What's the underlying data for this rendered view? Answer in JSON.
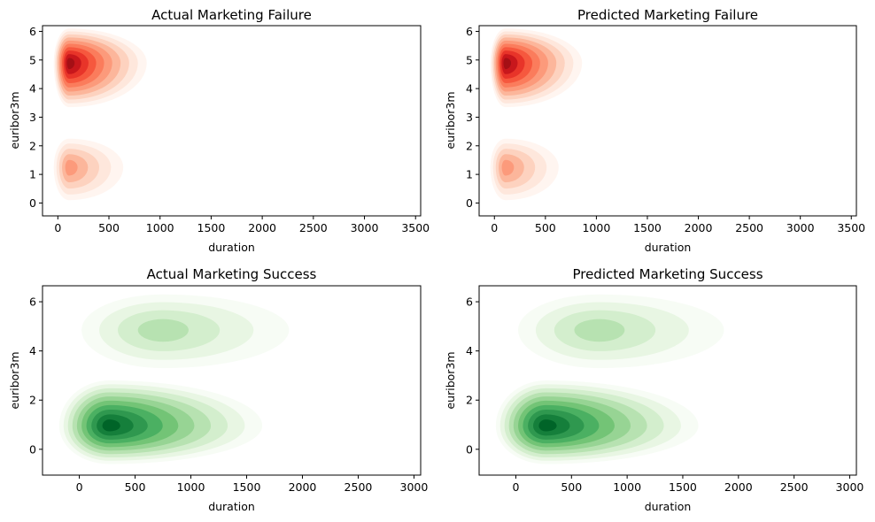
{
  "chart_data": [
    {
      "type": "kde-contour",
      "title": "Actual Marketing Failure",
      "xlabel": "duration",
      "ylabel": "euribor3m",
      "xlim": [
        -150,
        3550
      ],
      "ylim": [
        -0.45,
        6.2
      ],
      "xticks": [
        0,
        500,
        1000,
        1500,
        2000,
        2500,
        3000,
        3500
      ],
      "yticks": [
        0,
        1,
        2,
        3,
        4,
        5,
        6
      ],
      "colormap": "Reds",
      "colors": [
        "#fff5f0",
        "#fee7dc",
        "#fdd2bf",
        "#fcb69b",
        "#fc9a7b",
        "#fb7c5c",
        "#f6583e",
        "#e83429",
        "#c8171c",
        "#a50f15"
      ],
      "clusters": [
        {
          "center": [
            110,
            4.9
          ],
          "extent_x": [
            -40,
            870
          ],
          "extent_y": [
            3.35,
            6.1
          ],
          "peak": 1.0
        },
        {
          "center": [
            110,
            1.25
          ],
          "extent_x": [
            -40,
            640
          ],
          "extent_y": [
            0.1,
            2.25
          ],
          "peak": 0.45
        }
      ]
    },
    {
      "type": "kde-contour",
      "title": "Predicted Marketing Failure",
      "xlabel": "duration",
      "ylabel": "euribor3m",
      "xlim": [
        -150,
        3550
      ],
      "ylim": [
        -0.45,
        6.2
      ],
      "xticks": [
        0,
        500,
        1000,
        1500,
        2000,
        2500,
        3000,
        3500
      ],
      "yticks": [
        0,
        1,
        2,
        3,
        4,
        5,
        6
      ],
      "colormap": "Reds",
      "colors": [
        "#fff5f0",
        "#fee7dc",
        "#fdd2bf",
        "#fcb69b",
        "#fc9a7b",
        "#fb7c5c",
        "#f6583e",
        "#e83429",
        "#c8171c",
        "#a50f15"
      ],
      "clusters": [
        {
          "center": [
            110,
            4.9
          ],
          "extent_x": [
            -40,
            860
          ],
          "extent_y": [
            3.35,
            6.1
          ],
          "peak": 1.0
        },
        {
          "center": [
            110,
            1.25
          ],
          "extent_x": [
            -40,
            630
          ],
          "extent_y": [
            0.1,
            2.25
          ],
          "peak": 0.45
        }
      ]
    },
    {
      "type": "kde-contour",
      "title": "Actual Marketing Success",
      "xlabel": "duration",
      "ylabel": "euribor3m",
      "xlim": [
        -330,
        3060
      ],
      "ylim": [
        -1.05,
        6.65
      ],
      "xticks": [
        0,
        500,
        1000,
        1500,
        2000,
        2500,
        3000
      ],
      "yticks": [
        0,
        2,
        4,
        6
      ],
      "colormap": "Greens",
      "colors": [
        "#f7fcf5",
        "#e8f6e3",
        "#d3eecd",
        "#b7e2b1",
        "#97d494",
        "#73c476",
        "#4bb062",
        "#2f984f",
        "#157f3b",
        "#006428"
      ],
      "clusters": [
        {
          "center": [
            270,
            0.95
          ],
          "extent_x": [
            -180,
            1640
          ],
          "extent_y": [
            -0.6,
            2.8
          ],
          "peak": 1.0
        },
        {
          "center": [
            750,
            4.85
          ],
          "extent_x": [
            20,
            1880
          ],
          "extent_y": [
            3.3,
            6.3
          ],
          "peak": 0.35
        }
      ]
    },
    {
      "type": "kde-contour",
      "title": "Predicted Marketing Success",
      "xlabel": "duration",
      "ylabel": "euribor3m",
      "xlim": [
        -330,
        3060
      ],
      "ylim": [
        -1.05,
        6.65
      ],
      "xticks": [
        0,
        500,
        1000,
        1500,
        2000,
        2500,
        3000
      ],
      "yticks": [
        0,
        2,
        4,
        6
      ],
      "colormap": "Greens",
      "colors": [
        "#f7fcf5",
        "#e8f6e3",
        "#d3eecd",
        "#b7e2b1",
        "#97d494",
        "#73c476",
        "#4bb062",
        "#2f984f",
        "#157f3b",
        "#006428"
      ],
      "clusters": [
        {
          "center": [
            270,
            0.95
          ],
          "extent_x": [
            -180,
            1640
          ],
          "extent_y": [
            -0.6,
            2.8
          ],
          "peak": 1.0
        },
        {
          "center": [
            750,
            4.85
          ],
          "extent_x": [
            20,
            1870
          ],
          "extent_y": [
            3.3,
            6.3
          ],
          "peak": 0.35
        }
      ]
    }
  ]
}
